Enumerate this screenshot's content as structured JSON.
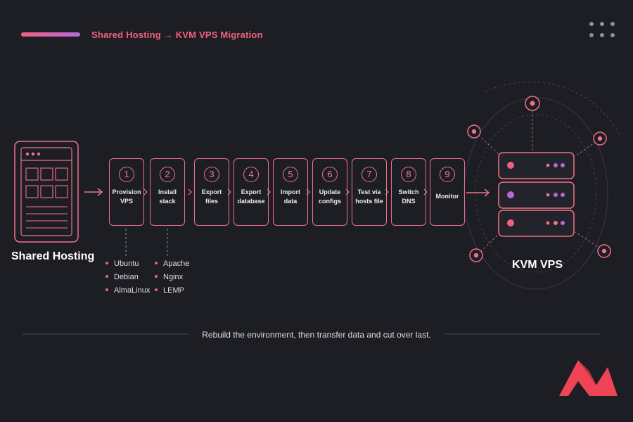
{
  "header": {
    "title": "Shared Hosting → KVM VPS Migration"
  },
  "source": {
    "label": "Shared Hosting",
    "icon": "browser-window-icon"
  },
  "target": {
    "label": "KVM VPS",
    "icon": "server-stack-icon"
  },
  "steps": [
    {
      "number": "1",
      "label": "Provision VPS",
      "line1": "Provision",
      "line2": "VPS"
    },
    {
      "number": "2",
      "label": "Install stack",
      "line1": "Install",
      "line2": "stack"
    },
    {
      "number": "3",
      "label": "Export files",
      "line1": "Export",
      "line2": "files"
    },
    {
      "number": "4",
      "label": "Export database",
      "line1": "Export",
      "line2": "database"
    },
    {
      "number": "5",
      "label": "Import data",
      "line1": "Import",
      "line2": "data"
    },
    {
      "number": "6",
      "label": "Update configs",
      "line1": "Update",
      "line2": "configs"
    },
    {
      "number": "7",
      "label": "Test via hosts file",
      "line1": "Test via",
      "line2": "hosts file"
    },
    {
      "number": "8",
      "label": "Switch DNS",
      "line1": "Switch",
      "line2": "DNS"
    },
    {
      "number": "9",
      "label": "Monitor",
      "line1": "Monitor",
      "line2": ""
    }
  ],
  "os_options": [
    "Ubuntu",
    "Debian",
    "AlmaLinux"
  ],
  "stack_options": [
    "Apache",
    "Nginx",
    "LEMP"
  ],
  "footer": {
    "caption": "Rebuild the environment, then transfer data and cut over last."
  },
  "colors": {
    "background": "#1d1e23",
    "accent": "#f2607e",
    "accent_purple": "#b56ad6",
    "logo_red": "#ee4456"
  },
  "logo": {
    "icon": "brand-logo-icon"
  }
}
